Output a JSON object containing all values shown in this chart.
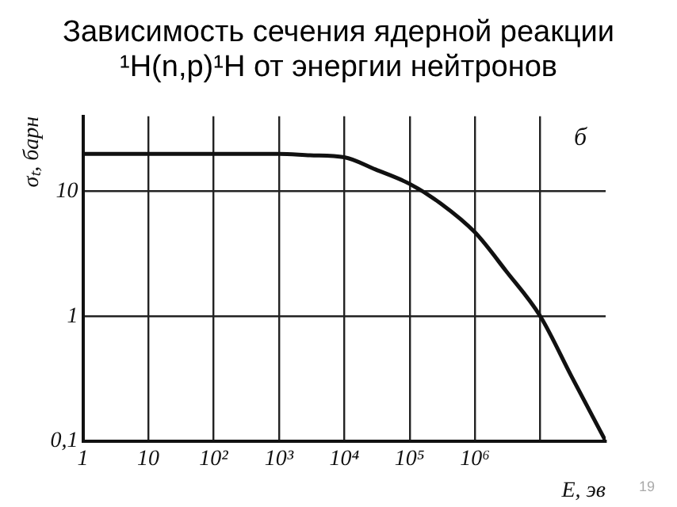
{
  "chart_data": {
    "type": "line",
    "title": "Зависимость  сечения ядерной реакции ¹H(n,p)¹H от энергии  нейтронов",
    "xlabel": "E, эв",
    "ylabel": "σₜ, барн",
    "log": "xy",
    "grid": true,
    "marker": "none",
    "line_style": "solid",
    "legend": false,
    "x": [
      1,
      10,
      100,
      1000,
      3000,
      10000,
      30000,
      100000,
      300000,
      1000000,
      3000000,
      10000000,
      30000000,
      100000000
    ],
    "series": [
      {
        "color": "#111111",
        "values": [
          20,
          20,
          20,
          20,
          19.5,
          18.8,
          15,
          11.5,
          8,
          4.7,
          2.3,
          1,
          0.33,
          0.1
        ]
      }
    ],
    "xlim": [
      1,
      100000000
    ],
    "xticks": [
      1,
      10,
      {
        "value": 100,
        "label": "10²"
      },
      {
        "value": 1000,
        "label": "10³"
      },
      {
        "value": 10000,
        "label": "10⁴"
      },
      {
        "value": 100000,
        "label": "10⁵"
      },
      {
        "value": 1000000,
        "label": "10⁶"
      },
      {
        "value": 10000000,
        "label": null
      }
    ],
    "ylim": [
      0.1,
      40
    ],
    "yticks": [
      {
        "value": 0.1,
        "label": "0,1"
      },
      1,
      10
    ],
    "annotations": [
      "б",
      "19"
    ]
  }
}
